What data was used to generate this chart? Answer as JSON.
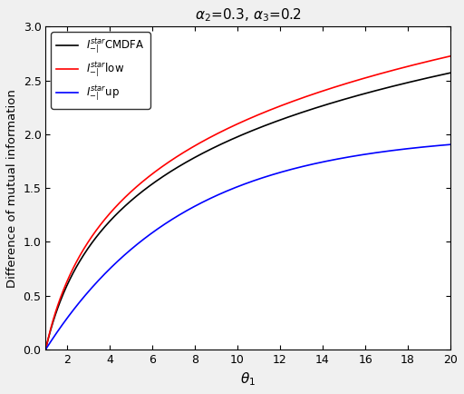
{
  "title": "$\\alpha_2$=0.3, $\\alpha_3$=0.2",
  "xlabel": "$\\theta_1$",
  "ylabel": "Difference of mutual information",
  "xlim": [
    1,
    20
  ],
  "ylim": [
    0,
    3
  ],
  "xticks": [
    2,
    4,
    6,
    8,
    10,
    12,
    14,
    16,
    18,
    20
  ],
  "yticks": [
    0,
    0.5,
    1,
    1.5,
    2,
    2.5,
    3
  ],
  "alpha2": 0.3,
  "alpha3": 0.2,
  "legend": [
    {
      "label": "CMDFA",
      "color": "#000000",
      "lw": 1.2
    },
    {
      "label": "low",
      "color": "#ff0000",
      "lw": 1.2
    },
    {
      "label": "up",
      "color": "#0000ff",
      "lw": 1.2
    }
  ],
  "background_color": "#f0f0f0",
  "plot_bg_color": "#ffffff",
  "theta_start": 1.0,
  "theta_end": 20.0,
  "n_points": 500,
  "A_red": 0.91,
  "A_black": 0.858,
  "A_blue": 0.54,
  "B_red": 0.08,
  "B_black": 0.05,
  "B_blue": 0.18
}
